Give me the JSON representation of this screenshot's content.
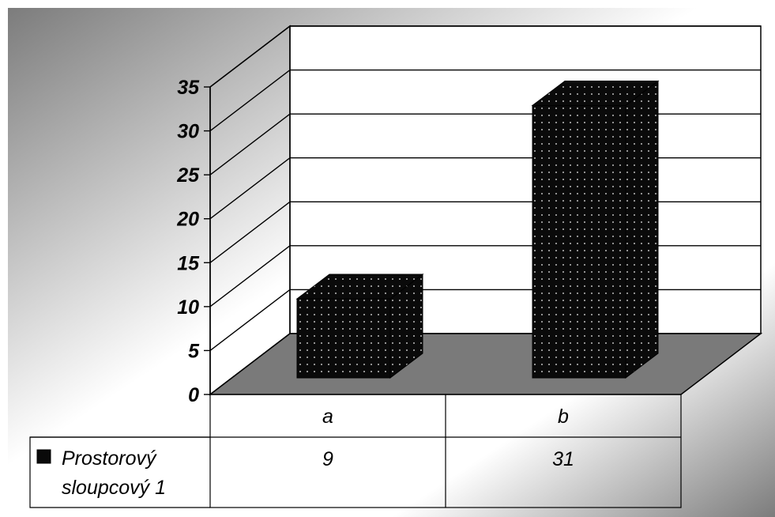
{
  "chart_data": {
    "type": "bar",
    "title": "",
    "xlabel": "",
    "ylabel": "",
    "categories": [
      "a",
      "b"
    ],
    "series": [
      {
        "name": "Prostorový sloupcový 1",
        "values": [
          9,
          31
        ]
      }
    ],
    "ylim": [
      0,
      35
    ],
    "yticks": [
      0,
      5,
      10,
      15,
      20,
      25,
      30,
      35
    ],
    "grid": true,
    "legend": "data-table-left",
    "three_d": true,
    "colors": {
      "bar_fill": "#0a0a0a",
      "bar_dots": "#bdbdbd",
      "floor": "#7a7a7a",
      "wall": "#ffffff",
      "background_dark": "#7c7c7c",
      "background_light": "#ffffff"
    }
  }
}
